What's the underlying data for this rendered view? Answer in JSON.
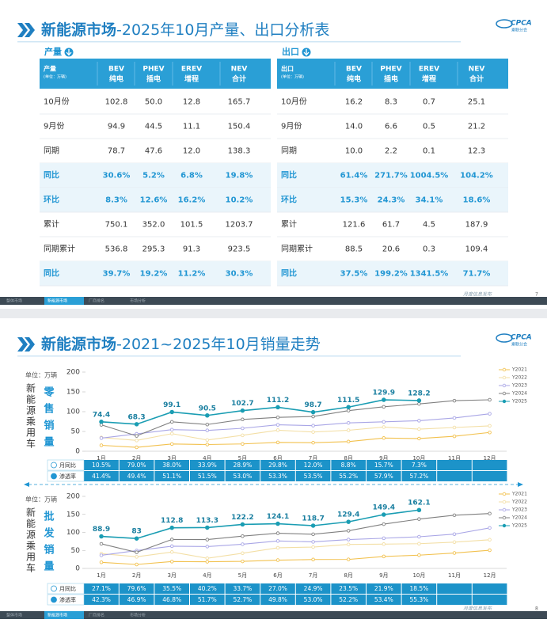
{
  "slide1": {
    "title_bold": "新能源市场",
    "title_rest": "-2025年10月产量、出口分析表",
    "logo": "CPCA",
    "logo_sub": "乘联分会",
    "tables": [
      {
        "section": "产量",
        "header": [
          [
            "产量",
            "(单位：万辆)"
          ],
          [
            "BEV",
            "纯电"
          ],
          [
            "PHEV",
            "插电"
          ],
          [
            "EREV",
            "增程"
          ],
          [
            "NEV",
            "合计"
          ]
        ],
        "rows": [
          {
            "cells": [
              "10月份",
              "102.8",
              "50.0",
              "12.8",
              "165.7"
            ],
            "highlight": false
          },
          {
            "cells": [
              "9月份",
              "94.9",
              "44.5",
              "11.1",
              "150.4"
            ],
            "highlight": false
          },
          {
            "cells": [
              "同期",
              "78.7",
              "47.6",
              "12.0",
              "138.3"
            ],
            "highlight": false
          },
          {
            "cells": [
              "同比",
              "30.6%",
              "5.2%",
              "6.8%",
              "19.8%"
            ],
            "highlight": true
          },
          {
            "cells": [
              "环比",
              "8.3%",
              "12.6%",
              "16.2%",
              "10.2%"
            ],
            "highlight": true
          },
          {
            "cells": [
              "累计",
              "750.1",
              "352.0",
              "101.5",
              "1203.7"
            ],
            "highlight": false
          },
          {
            "cells": [
              "同期累计",
              "536.8",
              "295.3",
              "91.3",
              "923.5"
            ],
            "highlight": false
          },
          {
            "cells": [
              "同比",
              "39.7%",
              "19.2%",
              "11.2%",
              "30.3%"
            ],
            "highlight": true
          }
        ]
      },
      {
        "section": "出口",
        "header": [
          [
            "出口",
            "(单位：万辆)"
          ],
          [
            "BEV",
            "纯电"
          ],
          [
            "PHEV",
            "插电"
          ],
          [
            "EREV",
            "增程"
          ],
          [
            "NEV",
            "合计"
          ]
        ],
        "rows": [
          {
            "cells": [
              "10月份",
              "16.2",
              "8.3",
              "0.7",
              "25.1"
            ],
            "highlight": false
          },
          {
            "cells": [
              "9月份",
              "14.0",
              "6.6",
              "0.5",
              "21.2"
            ],
            "highlight": false
          },
          {
            "cells": [
              "同期",
              "10.0",
              "2.2",
              "0.1",
              "12.3"
            ],
            "highlight": false
          },
          {
            "cells": [
              "同比",
              "61.4%",
              "271.7%",
              "1004.5%",
              "104.2%"
            ],
            "highlight": true
          },
          {
            "cells": [
              "环比",
              "15.3%",
              "24.3%",
              "34.1%",
              "18.6%"
            ],
            "highlight": true
          },
          {
            "cells": [
              "累计",
              "121.6",
              "61.7",
              "4.5",
              "187.9"
            ],
            "highlight": false
          },
          {
            "cells": [
              "同期累计",
              "88.5",
              "20.6",
              "0.3",
              "109.4"
            ],
            "highlight": false
          },
          {
            "cells": [
              "同比",
              "37.5%",
              "199.2%",
              "1341.5%",
              "71.7%"
            ],
            "highlight": true
          }
        ]
      }
    ],
    "footer": {
      "tabs": [
        "整体市场",
        "新能源市场",
        "厂商排名",
        "市场分析"
      ],
      "active": 1,
      "note": "月度信息发布",
      "page": "7"
    }
  },
  "slide2": {
    "title_bold": "新能源市场",
    "title_rest": "-2021~2025年10月销量走势",
    "logo": "CPCA",
    "logo_sub": "乘联分会",
    "footer": {
      "tabs": [
        "整体市场",
        "新能源市场",
        "厂商排名",
        "市场分析"
      ],
      "active": 1,
      "note": "月度信息发布",
      "page": "8"
    }
  },
  "chart_data": [
    {
      "type": "line",
      "unit": "单位：万辆",
      "label_main": "新能源乘用车",
      "label_sub": "零售销量",
      "categories": [
        "1月",
        "2月",
        "3月",
        "4月",
        "5月",
        "6月",
        "7月",
        "8月",
        "9月",
        "10月",
        "11月",
        "12月"
      ],
      "ylim": [
        0,
        200
      ],
      "yticks": [
        0,
        50,
        100,
        150,
        200
      ],
      "series": [
        {
          "name": "Y2021",
          "color": "#f2c14e",
          "values": [
            15.0,
            9.9,
            18.3,
            17.0,
            18.5,
            22.3,
            21.6,
            24.4,
            33.4,
            32.1,
            37.8,
            47.5
          ]
        },
        {
          "name": "Y2022",
          "color": "#f3dfa6",
          "values": [
            34.7,
            27.3,
            44.5,
            28.3,
            40.3,
            53.2,
            48.6,
            53.0,
            61.1,
            55.9,
            60.0,
            64.2
          ]
        },
        {
          "name": "Y2023",
          "color": "#a9a6e6",
          "values": [
            33.2,
            43.9,
            54.6,
            52.7,
            58.0,
            66.8,
            64.7,
            71.6,
            74.3,
            77.2,
            84.1,
            94.7
          ]
        },
        {
          "name": "Y2024",
          "color": "#808080",
          "values": [
            66.8,
            38.8,
            74.3,
            67.5,
            80.4,
            85.6,
            87.8,
            102.7,
            112.3,
            119.6,
            127.8,
            130.0
          ]
        },
        {
          "name": "Y2025",
          "color": "#1a9db3",
          "labels": true,
          "values": [
            74.4,
            68.3,
            99.1,
            90.5,
            102.7,
            111.2,
            98.7,
            111.5,
            129.9,
            128.2,
            null,
            null
          ]
        }
      ],
      "table": [
        {
          "label": "月同比",
          "cells": [
            "10.5%",
            "79.0%",
            "38.0%",
            "33.9%",
            "28.9%",
            "29.8%",
            "12.0%",
            "8.8%",
            "15.7%",
            "7.3%",
            null,
            null
          ]
        },
        {
          "label": "渗透率",
          "cells": [
            "41.4%",
            "49.4%",
            "51.1%",
            "51.5%",
            "53.0%",
            "53.3%",
            "53.5%",
            "55.2%",
            "57.9%",
            "57.2%",
            null,
            null
          ]
        }
      ]
    },
    {
      "type": "line",
      "unit": "单位：万辆",
      "label_main": "新能源乘用车",
      "label_sub": "批发销量",
      "categories": [
        "1月",
        "2月",
        "3月",
        "4月",
        "5月",
        "6月",
        "7月",
        "8月",
        "9月",
        "10月",
        "11月",
        "12月"
      ],
      "ylim": [
        0,
        200
      ],
      "yticks": [
        0,
        50,
        100,
        150,
        200
      ],
      "series": [
        {
          "name": "Y2021",
          "color": "#f2c14e",
          "values": [
            17.0,
            11.0,
            19.0,
            18.5,
            19.6,
            23.0,
            24.7,
            25.0,
            33.2,
            36.8,
            42.8,
            50.5
          ]
        },
        {
          "name": "Y2022",
          "color": "#f3dfa6",
          "values": [
            41.0,
            32.2,
            45.5,
            28.2,
            42.2,
            57.2,
            59.3,
            66.6,
            67.5,
            68.7,
            73.0,
            79.6
          ]
        },
        {
          "name": "Y2023",
          "color": "#a9a6e6",
          "values": [
            36.4,
            49.6,
            61.7,
            60.6,
            67.1,
            76.2,
            73.7,
            80.1,
            83.8,
            87.9,
            95.1,
            112.5
          ]
        },
        {
          "name": "Y2024",
          "color": "#808080",
          "values": [
            68.2,
            44.7,
            80.4,
            80.0,
            89.6,
            97.7,
            94.9,
            104.6,
            122.9,
            137.0,
            147.6,
            152.3
          ]
        },
        {
          "name": "Y2025",
          "color": "#1a9db3",
          "labels": true,
          "values": [
            88.9,
            83.0,
            112.8,
            113.3,
            122.2,
            124.1,
            118.7,
            129.4,
            149.4,
            162.1,
            null,
            null
          ]
        }
      ],
      "table": [
        {
          "label": "月同比",
          "cells": [
            "27.1%",
            "79.6%",
            "35.5%",
            "40.2%",
            "33.7%",
            "27.0%",
            "24.9%",
            "23.5%",
            "21.9%",
            "18.5%",
            null,
            null
          ]
        },
        {
          "label": "渗透率",
          "cells": [
            "42.3%",
            "46.9%",
            "46.8%",
            "51.7%",
            "52.7%",
            "49.8%",
            "53.0%",
            "52.2%",
            "53.4%",
            "55.3%",
            null,
            null
          ]
        }
      ]
    }
  ]
}
